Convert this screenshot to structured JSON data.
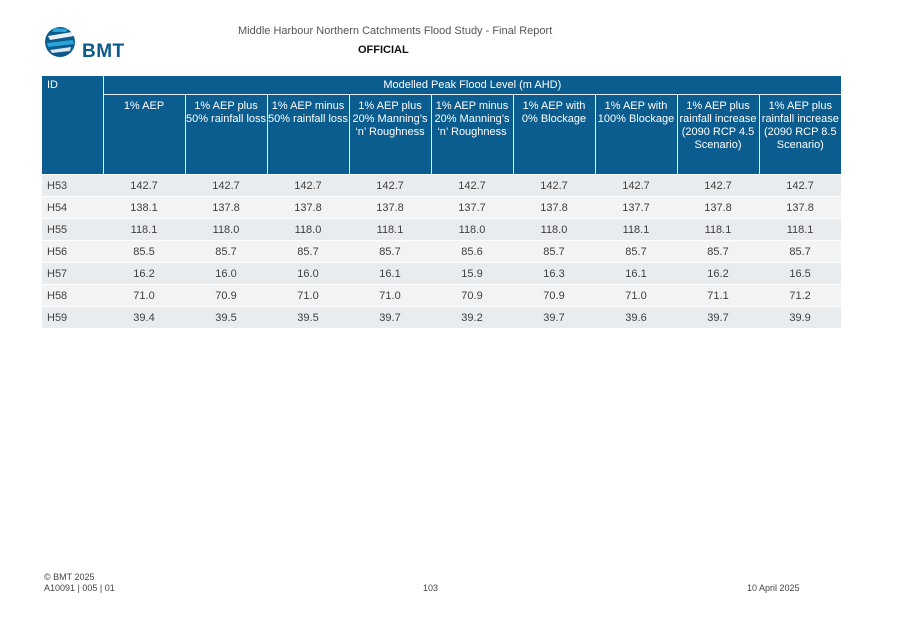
{
  "header": {
    "logo_text": "BMT",
    "doc_title": "Middle Harbour Northern Catchments Flood Study - Final Report",
    "classification": "OFFICIAL"
  },
  "table": {
    "id_header": "ID",
    "group_header": "Modelled Peak Flood Level (m AHD)",
    "columns": [
      "1% AEP",
      "1% AEP plus 50% rainfall loss",
      "1% AEP minus 50% rainfall loss",
      "1% AEP plus 20% Manning’s ‘n’ Roughness",
      "1% AEP minus 20% Manning’s ‘n’ Roughness",
      "1% AEP with 0% Blockage",
      "1% AEP with 100% Blockage",
      "1% AEP plus rainfall increase (2090 RCP 4.5 Scenario)",
      "1% AEP plus rainfall increase (2090 RCP 8.5 Scenario)"
    ],
    "rows": [
      {
        "id": "H53",
        "values": [
          "142.7",
          "142.7",
          "142.7",
          "142.7",
          "142.7",
          "142.7",
          "142.7",
          "142.7",
          "142.7"
        ]
      },
      {
        "id": "H54",
        "values": [
          "138.1",
          "137.8",
          "137.8",
          "137.8",
          "137.7",
          "137.8",
          "137.7",
          "137.8",
          "137.8"
        ]
      },
      {
        "id": "H55",
        "values": [
          "118.1",
          "118.0",
          "118.0",
          "118.1",
          "118.0",
          "118.0",
          "118.1",
          "118.1",
          "118.1"
        ]
      },
      {
        "id": "H56",
        "values": [
          "85.5",
          "85.7",
          "85.7",
          "85.7",
          "85.6",
          "85.7",
          "85.7",
          "85.7",
          "85.7"
        ]
      },
      {
        "id": "H57",
        "values": [
          "16.2",
          "16.0",
          "16.0",
          "16.1",
          "15.9",
          "16.3",
          "16.1",
          "16.2",
          "16.5"
        ]
      },
      {
        "id": "H58",
        "values": [
          "71.0",
          "70.9",
          "71.0",
          "71.0",
          "70.9",
          "70.9",
          "71.0",
          "71.1",
          "71.2"
        ]
      },
      {
        "id": "H59",
        "values": [
          "39.4",
          "39.5",
          "39.5",
          "39.7",
          "39.2",
          "39.7",
          "39.6",
          "39.7",
          "39.9"
        ]
      }
    ]
  },
  "footer": {
    "copyright": "© BMT 2025",
    "doc_ref": "A10091 | 005 | 01",
    "page": "103",
    "date": "10 April 2025"
  },
  "colors": {
    "header_bg": "#0b5c8f",
    "logo_dark": "#0a5a8c",
    "logo_light": "#2aa3d6"
  }
}
